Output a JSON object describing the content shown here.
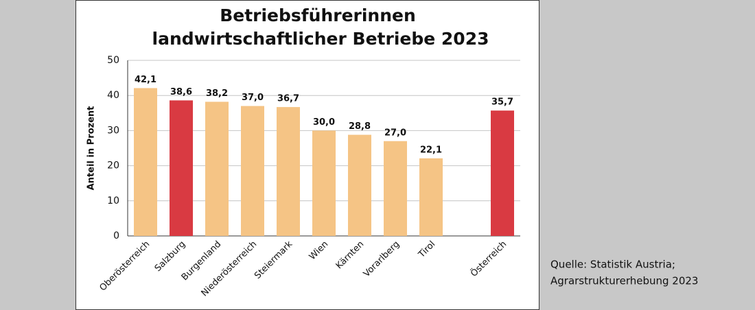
{
  "chart_data": {
    "type": "bar",
    "title_lines": [
      "Betriebsführerinnen",
      "landwirtschaftlicher Betriebe 2023"
    ],
    "y_label": "Anteil in Prozent",
    "categories": [
      "Oberösterreich",
      "Salzburg",
      "Burgenland",
      "Niederösterreich",
      "Steiermark",
      "Wien",
      "Kärnten",
      "Vorarlberg",
      "Tirol",
      null,
      "Österreich"
    ],
    "values": [
      42.1,
      38.6,
      38.2,
      37.0,
      36.7,
      30.0,
      28.8,
      27.0,
      22.1,
      null,
      35.7
    ],
    "value_labels": [
      "42,1",
      "38,6",
      "38,2",
      "37,0",
      "36,7",
      "30,0",
      "28,8",
      "27,0",
      "22,1",
      null,
      "35,7"
    ],
    "colors": [
      "#f5c485",
      "#d93a42",
      "#f5c485",
      "#f5c485",
      "#f5c485",
      "#f5c485",
      "#f5c485",
      "#f5c485",
      "#f5c485",
      null,
      "#d93a42"
    ],
    "ylim": [
      0,
      50
    ],
    "yticks": [
      0,
      10,
      20,
      30,
      40,
      50
    ],
    "grid": true
  },
  "source_lines": [
    "Quelle: Statistik Austria;",
    "Agrarstrukturerhebung 2023"
  ]
}
